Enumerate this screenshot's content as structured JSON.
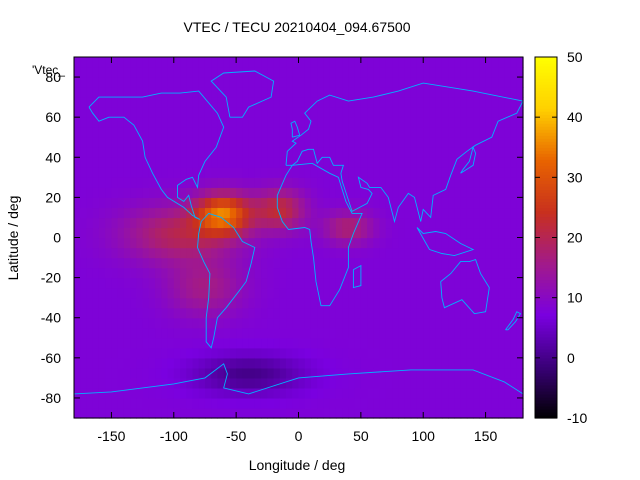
{
  "chart_data": {
    "type": "heatmap",
    "title": "VTEC / TECU 20210404_094.67500",
    "xlabel": "Longitude / deg",
    "ylabel": "Latitude / deg",
    "xlim": [
      -180,
      180
    ],
    "ylim": [
      -90,
      90
    ],
    "x_ticks": [
      -150,
      -100,
      -50,
      0,
      50,
      100,
      150
    ],
    "y_ticks": [
      -80,
      -60,
      -40,
      -20,
      0,
      20,
      40,
      60,
      80
    ],
    "colorbar": {
      "range": [
        -10,
        50
      ],
      "ticks": [
        -10,
        0,
        10,
        20,
        30,
        40,
        50
      ],
      "colors": [
        "#000000",
        "#3a0078",
        "#7a00e0",
        "#a21a8a",
        "#c8301e",
        "#e86400",
        "#ffd000",
        "#ffff00"
      ]
    },
    "legend_text": "'Vtec_",
    "field": {
      "background": 8,
      "blobs": [
        {
          "lon": -60,
          "lat": 12,
          "slon": 22,
          "slat": 10,
          "amp": 24
        },
        {
          "lon": -15,
          "lat": 14,
          "slon": 20,
          "slat": 10,
          "amp": 14
        },
        {
          "lon": -95,
          "lat": 2,
          "slon": 45,
          "slat": 14,
          "amp": 12
        },
        {
          "lon": -75,
          "lat": -25,
          "slon": 30,
          "slat": 14,
          "amp": 8
        },
        {
          "lon": 40,
          "lat": 5,
          "slon": 20,
          "slat": 8,
          "amp": 10
        },
        {
          "lon": -40,
          "lat": -68,
          "slon": 45,
          "slat": 10,
          "amp": -8
        }
      ]
    }
  }
}
